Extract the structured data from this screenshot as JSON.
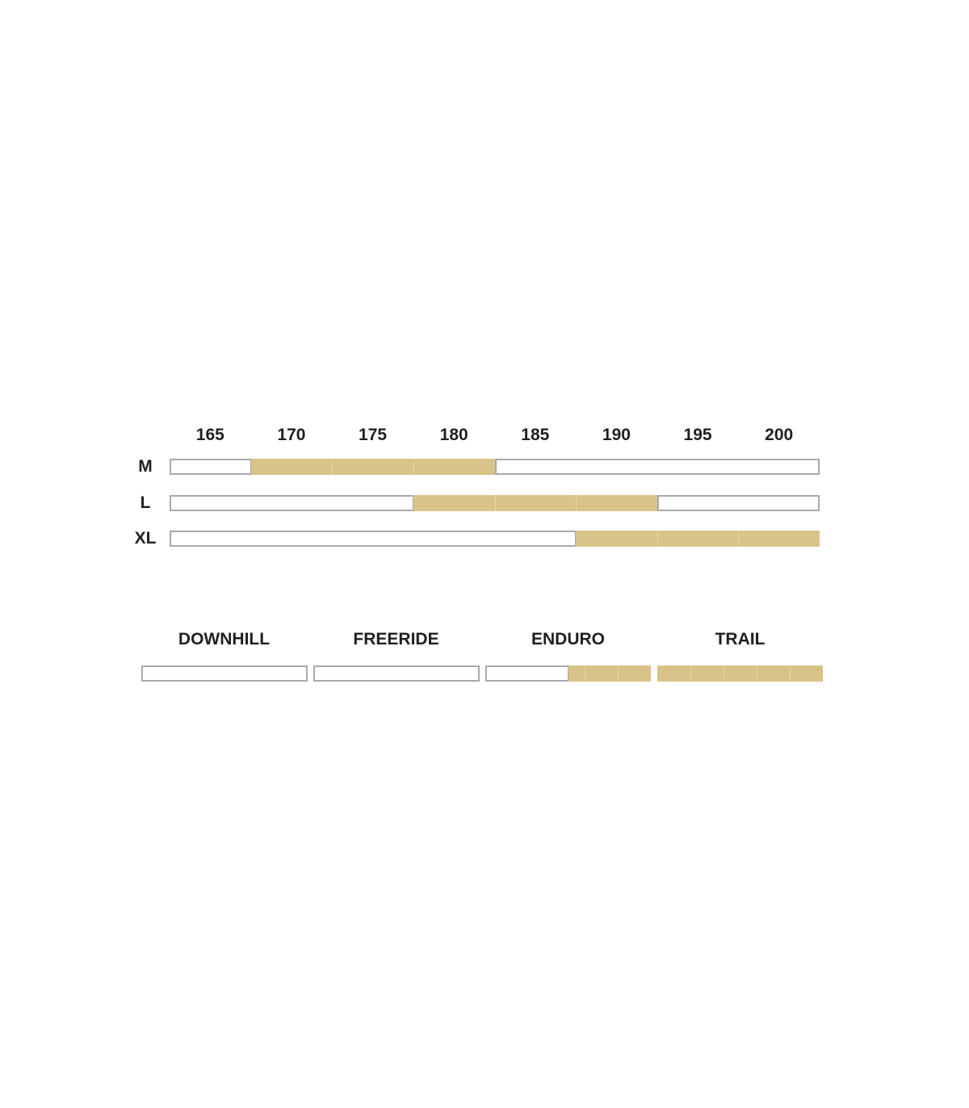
{
  "chart_data": {
    "type": "table",
    "title": "",
    "height_ticks": [
      "165",
      "170",
      "175",
      "180",
      "185",
      "190",
      "195",
      "200"
    ],
    "sizes": [
      {
        "label": "M",
        "recommended_heights": [
          170,
          175,
          180
        ]
      },
      {
        "label": "L",
        "recommended_heights": [
          180,
          185,
          190
        ]
      },
      {
        "label": "XL",
        "recommended_heights": [
          190,
          195,
          200
        ]
      }
    ],
    "usage": [
      {
        "label": "DOWNHILL",
        "level": 0
      },
      {
        "label": "FREERIDE",
        "level": 0
      },
      {
        "label": "ENDURO",
        "level": 0.5
      },
      {
        "label": "TRAIL",
        "level": 1.0
      }
    ],
    "usage_scale_segments": 5,
    "colors": {
      "fill": "#dac389",
      "empty_border": "#a7a9ac",
      "text": "#231f20"
    }
  }
}
